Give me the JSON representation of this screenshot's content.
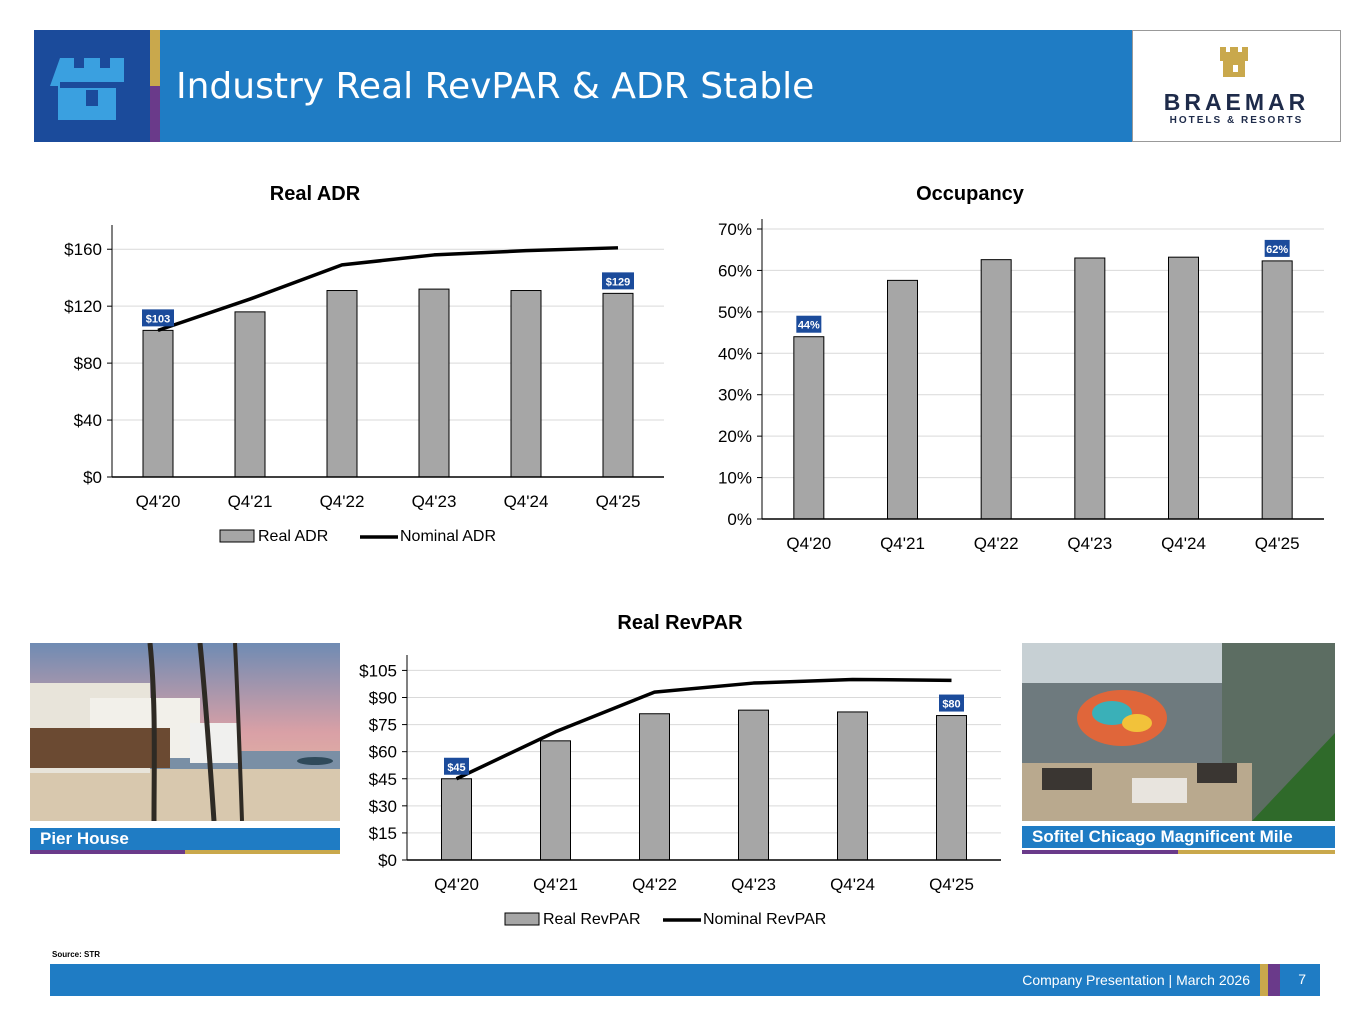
{
  "header": {
    "title": "Industry Real RevPAR & ADR Stable"
  },
  "logo": {
    "name": "BRAEMAR",
    "sub": "HOTELS & RESORTS"
  },
  "colors": {
    "bar": "#a6a6a6",
    "line": "#000000",
    "label_bg": "#1b4b9b",
    "brand_blue": "#1f7cc4",
    "gold": "#c9a84c",
    "purple": "#6a3a8a"
  },
  "chart_data": [
    {
      "id": "adr",
      "type": "bar",
      "title": "Real ADR",
      "categories": [
        "Q4'20",
        "Q4'21",
        "Q4'22",
        "Q4'23",
        "Q4'24",
        "Q4'25"
      ],
      "series": [
        {
          "name": "Real ADR",
          "type": "bar",
          "values": [
            103,
            116,
            131,
            132,
            131,
            129
          ]
        },
        {
          "name": "Nominal ADR",
          "type": "line",
          "values": [
            103,
            125,
            149,
            156,
            159,
            161
          ]
        }
      ],
      "ylim": [
        0,
        170
      ],
      "yticks": [
        0,
        40,
        80,
        120,
        160
      ],
      "ytick_labels": [
        "$0",
        "$40",
        "$80",
        "$120",
        "$160"
      ],
      "data_labels": [
        {
          "index": 0,
          "text": "$103"
        },
        {
          "index": 5,
          "text": "$129"
        }
      ],
      "legend": [
        "Real ADR",
        "Nominal ADR"
      ],
      "grid": true
    },
    {
      "id": "occ",
      "type": "bar",
      "title": "Occupancy",
      "categories": [
        "Q4'20",
        "Q4'21",
        "Q4'22",
        "Q4'23",
        "Q4'24",
        "Q4'25"
      ],
      "series": [
        {
          "name": "Occupancy",
          "type": "bar",
          "values": [
            44,
            57.6,
            62.6,
            63,
            63.2,
            62.3
          ]
        }
      ],
      "ylim": [
        0,
        70
      ],
      "yticks": [
        0,
        10,
        20,
        30,
        40,
        50,
        60,
        70
      ],
      "ytick_labels": [
        "0%",
        "10%",
        "20%",
        "30%",
        "40%",
        "50%",
        "60%",
        "70%"
      ],
      "data_labels": [
        {
          "index": 0,
          "text": "44%"
        },
        {
          "index": 5,
          "text": "62%"
        }
      ],
      "legend": [],
      "grid": true
    },
    {
      "id": "revpar",
      "type": "bar",
      "title": "Real RevPAR",
      "categories": [
        "Q4'20",
        "Q4'21",
        "Q4'22",
        "Q4'23",
        "Q4'24",
        "Q4'25"
      ],
      "series": [
        {
          "name": "Real RevPAR",
          "type": "bar",
          "values": [
            45,
            66,
            81,
            83,
            82,
            80
          ]
        },
        {
          "name": "Nominal RevPAR",
          "type": "line",
          "values": [
            45,
            71,
            93,
            98,
            100,
            99.5
          ]
        }
      ],
      "ylim": [
        0,
        108
      ],
      "yticks": [
        0,
        15,
        30,
        45,
        60,
        75,
        90,
        105
      ],
      "ytick_labels": [
        "$0",
        "$15",
        "$30",
        "$45",
        "$60",
        "$75",
        "$90",
        "$105"
      ],
      "data_labels": [
        {
          "index": 0,
          "text": "$45"
        },
        {
          "index": 5,
          "text": "$80"
        }
      ],
      "legend": [
        "Real RevPAR",
        "Nominal RevPAR"
      ],
      "grid": true
    }
  ],
  "photos": {
    "left_caption": "Pier House",
    "right_caption": "Sofitel Chicago Magnificent Mile"
  },
  "source": "Source: STR",
  "footer": {
    "text": "Company Presentation  |  March 2026",
    "page": "7"
  }
}
